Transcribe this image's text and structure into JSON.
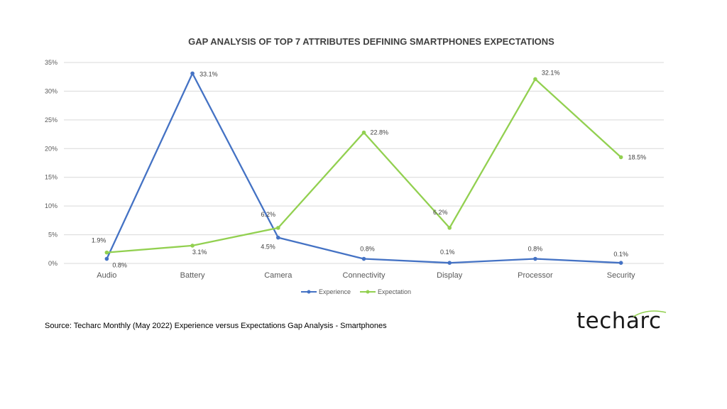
{
  "chart_data": {
    "type": "line",
    "title": "GAP ANALYSIS OF TOP 7 ATTRIBUTES DEFINING SMARTPHONES EXPECTATIONS",
    "categories": [
      "Audio",
      "Battery",
      "Camera",
      "Connectivity",
      "Display",
      "Processor",
      "Security"
    ],
    "y_ticks": [
      "0%",
      "5%",
      "10%",
      "15%",
      "20%",
      "25%",
      "30%",
      "35%"
    ],
    "ylim": [
      0,
      35
    ],
    "grid": true,
    "legend_position": "bottom",
    "series": [
      {
        "name": "Experience",
        "color": "#4472c4",
        "values": [
          0.8,
          33.1,
          4.5,
          0.8,
          0.1,
          0.8,
          0.1
        ],
        "labels": [
          "0.8%",
          "33.1%",
          "4.5%",
          "0.8%",
          "0.1%",
          "0.8%",
          "0.1%"
        ]
      },
      {
        "name": "Expectation",
        "color": "#92d050",
        "values": [
          1.9,
          3.1,
          6.2,
          22.8,
          6.2,
          32.1,
          18.5
        ],
        "labels": [
          "1.9%",
          "3.1%",
          "6.2%",
          "22.8%",
          "6.2%",
          "32.1%",
          "18.5%"
        ]
      }
    ]
  },
  "source": "Source: Techarc Monthly (May 2022) Experience versus Expectations Gap Analysis - Smartphones",
  "logo": {
    "text": "techarc",
    "accent_color": "#92d050"
  }
}
